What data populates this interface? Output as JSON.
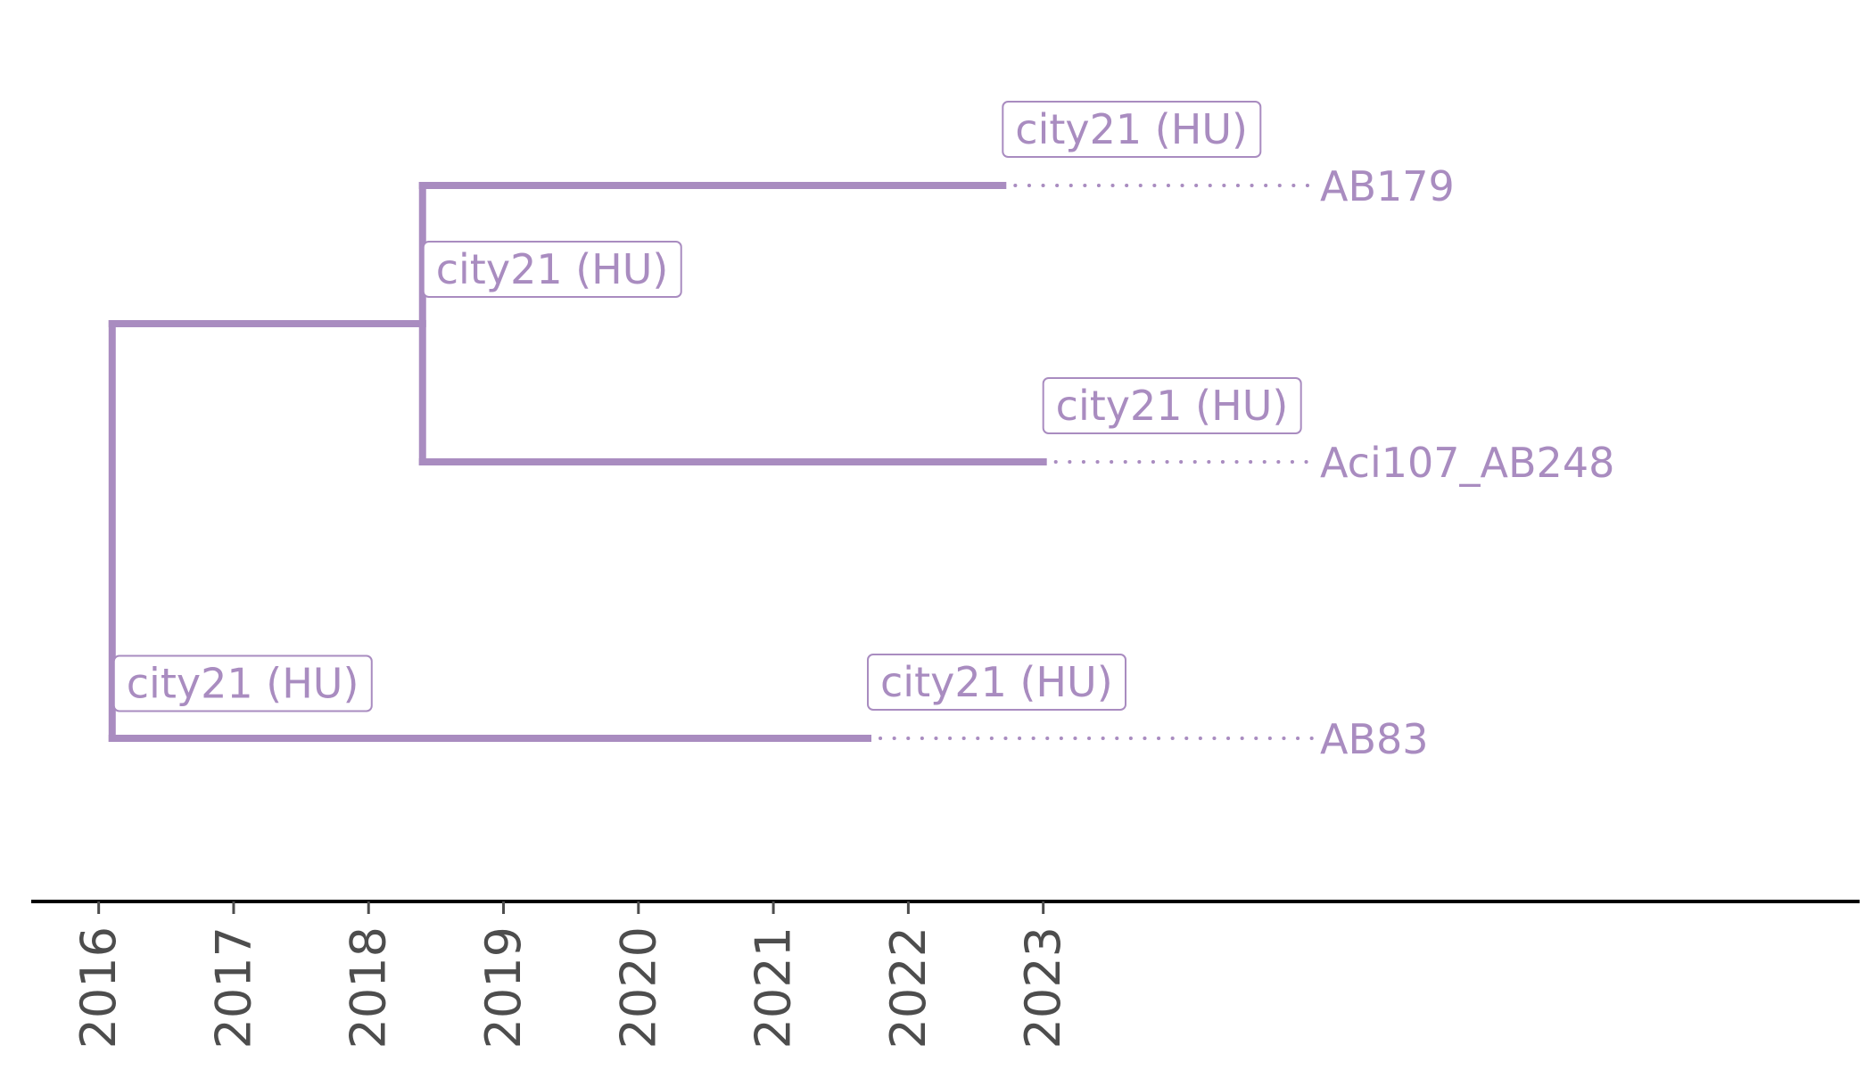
{
  "colors": {
    "branch": "#a98cc0",
    "axis": "#000000",
    "tick_label": "#4d4d4d",
    "background": "#ffffff"
  },
  "tree": {
    "root": {
      "date": 2016.1,
      "label": "city21 (HU)",
      "children": [
        {
          "date": 2018.4,
          "label": "city21 (HU)",
          "children": [
            {
              "date": 2022.7,
              "label": "city21 (HU)",
              "tip": "AB179"
            },
            {
              "date": 2023.0,
              "label": "city21 (HU)",
              "tip": "Aci107_AB248"
            }
          ]
        },
        {
          "date": 2021.7,
          "label": "city21 (HU)",
          "tip": "AB83"
        }
      ]
    }
  },
  "axis": {
    "ticks": [
      "2016",
      "2017",
      "2018",
      "2019",
      "2020",
      "2021",
      "2022",
      "2023"
    ],
    "tick_values": [
      2016,
      2017,
      2018,
      2019,
      2020,
      2021,
      2022,
      2023
    ],
    "range": [
      2015.5,
      2029.05
    ]
  }
}
